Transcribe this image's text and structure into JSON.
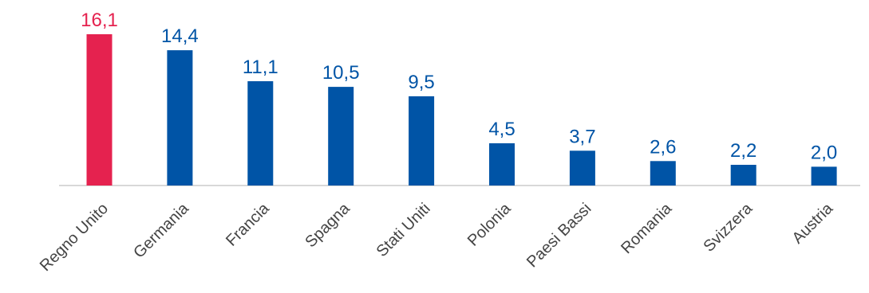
{
  "chart_data": {
    "type": "bar",
    "categories": [
      "Regno Unito",
      "Germania",
      "Francia",
      "Spagna",
      "Stati Uniti",
      "Polonia",
      "Paesi Bassi",
      "Romania",
      "Svizzera",
      "Austria"
    ],
    "values": [
      16.1,
      14.4,
      11.1,
      10.5,
      9.5,
      4.5,
      3.7,
      2.6,
      2.2,
      2.0
    ],
    "value_labels": [
      "16,1",
      "14,4",
      "11,1",
      "10,5",
      "9,5",
      "4,5",
      "3,7",
      "2,6",
      "2,2",
      "2,0"
    ],
    "highlight_index": 0,
    "colors": {
      "highlight": "#e5224f",
      "default": "#0054a6",
      "axis": "#cccccc"
    },
    "ylim": [
      0,
      16.1
    ],
    "grid": false,
    "legend": "none"
  }
}
